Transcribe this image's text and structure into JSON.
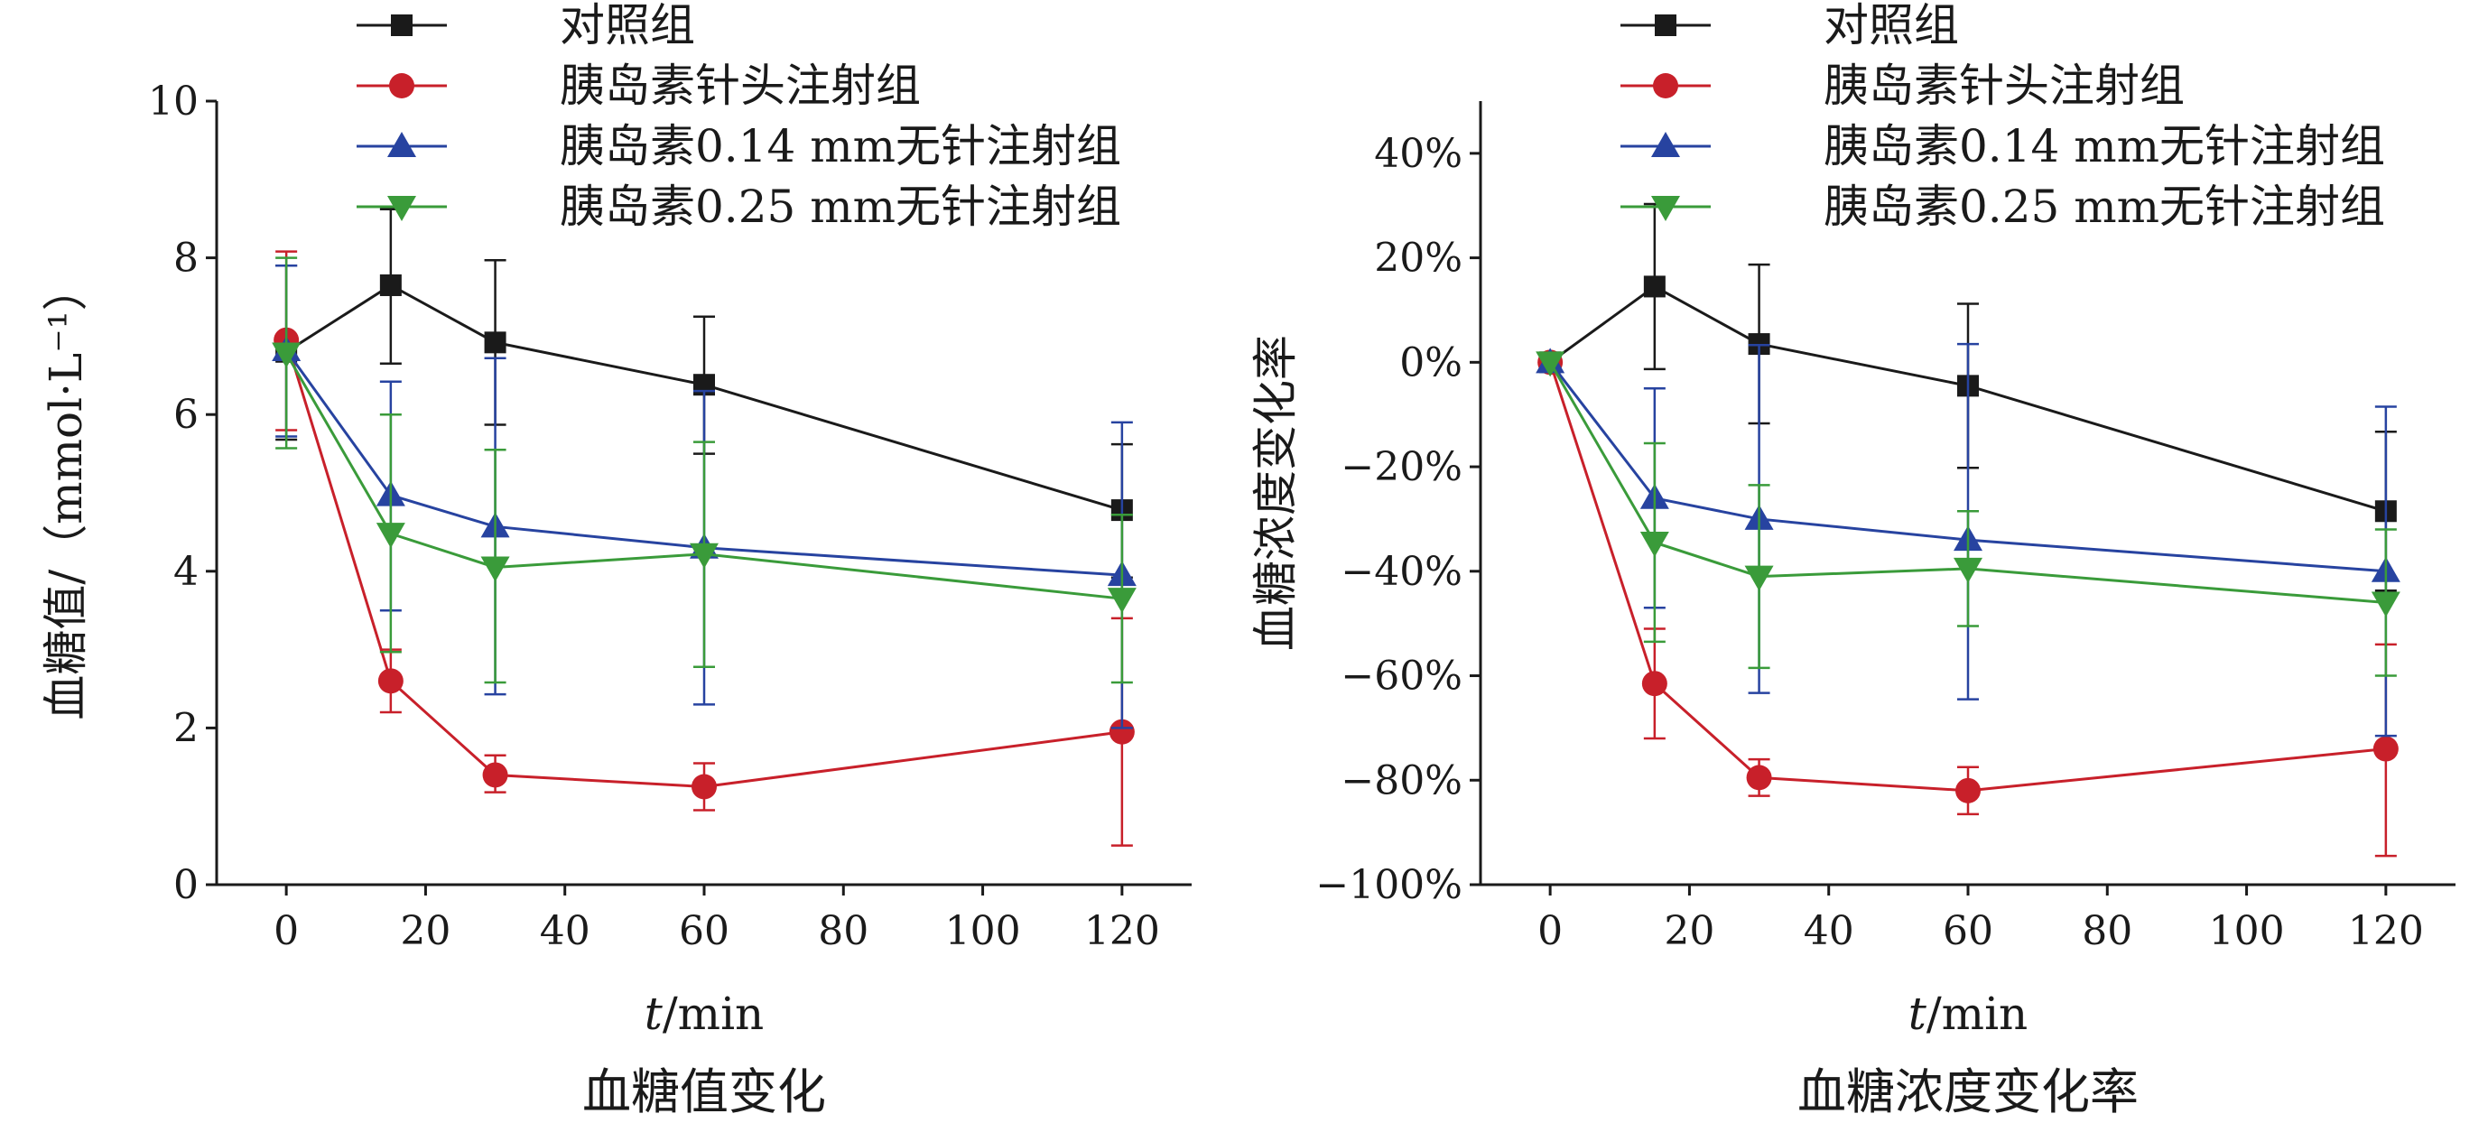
{
  "chart_data": [
    {
      "type": "line",
      "caption": "血糖值变化",
      "xlabel_italic": "t",
      "xlabel_unit": "/min",
      "ylabel": "血糖值/（mmol·L⁻¹）",
      "xlim": [
        -10,
        130
      ],
      "ylim": [
        0,
        10
      ],
      "xticks": [
        0,
        20,
        40,
        60,
        80,
        100,
        120
      ],
      "yticks": [
        0,
        2,
        4,
        6,
        8,
        10
      ],
      "x": [
        0,
        15,
        30,
        60,
        120
      ],
      "grid": false,
      "legend_position": "top",
      "series": [
        {
          "name": "对照组",
          "color": "#1a1a1a",
          "marker": "square",
          "values": [
            6.8,
            7.65,
            6.92,
            6.38,
            4.78
          ],
          "err_upper": [
            7.9,
            8.62,
            7.97,
            7.25,
            5.62
          ],
          "err_lower": [
            5.68,
            6.65,
            5.87,
            5.5,
            3.92
          ]
        },
        {
          "name": "胰岛素针头注射组",
          "color": "#c8202a",
          "marker": "circle",
          "values": [
            6.95,
            2.6,
            1.4,
            1.25,
            1.95
          ],
          "err_upper": [
            8.08,
            3.0,
            1.65,
            1.55,
            3.4
          ],
          "err_lower": [
            5.8,
            2.2,
            1.18,
            0.95,
            0.5
          ]
        },
        {
          "name": "胰岛素0.14 mm无针注射组",
          "color": "#2743a0",
          "marker": "triangle-up",
          "values": [
            6.82,
            4.97,
            4.57,
            4.3,
            3.95
          ],
          "err_upper": [
            7.9,
            6.42,
            6.72,
            6.3,
            5.9
          ],
          "err_lower": [
            5.72,
            3.5,
            2.43,
            2.3,
            2.0
          ]
        },
        {
          "name": "胰岛素0.25 mm无针注射组",
          "color": "#3a9b3a",
          "marker": "triangle-down",
          "values": [
            6.78,
            4.48,
            4.05,
            4.22,
            3.65
          ],
          "err_upper": [
            8.0,
            6.0,
            5.55,
            5.65,
            4.72
          ],
          "err_lower": [
            5.57,
            2.97,
            2.58,
            2.78,
            2.58
          ]
        }
      ]
    },
    {
      "type": "line",
      "caption": "血糖浓度变化率",
      "xlabel_italic": "t",
      "xlabel_unit": "/min",
      "ylabel": "血糖浓度变化率",
      "xlim": [
        -10,
        130
      ],
      "ylim": [
        -100,
        50
      ],
      "xticks": [
        0,
        20,
        40,
        60,
        80,
        100,
        120
      ],
      "yticks": [
        -100,
        -80,
        -60,
        -40,
        -20,
        0,
        20,
        40
      ],
      "ytick_suffix": "%",
      "x": [
        0,
        15,
        30,
        60,
        120
      ],
      "grid": false,
      "legend_position": "top",
      "series": [
        {
          "name": "对照组",
          "color": "#1a1a1a",
          "marker": "square",
          "values": [
            0,
            14.5,
            3.5,
            -4.5,
            -28.5
          ],
          "err_upper": [
            0,
            30.3,
            18.7,
            11.2,
            -13.3
          ],
          "err_lower": [
            0,
            -1.3,
            -11.7,
            -20.2,
            -43.7
          ]
        },
        {
          "name": "胰岛素针头注射组",
          "color": "#c8202a",
          "marker": "circle",
          "values": [
            0,
            -61.5,
            -79.5,
            -82,
            -74
          ],
          "err_upper": [
            0,
            -51,
            -76,
            -77.5,
            -54
          ],
          "err_lower": [
            0,
            -72,
            -83,
            -86.5,
            -94.5
          ]
        },
        {
          "name": "胰岛素0.14 mm无针注射组",
          "color": "#2743a0",
          "marker": "triangle-up",
          "values": [
            0,
            -26,
            -30,
            -34,
            -40
          ],
          "err_upper": [
            0,
            -5,
            3.3,
            3.5,
            -8.5
          ],
          "err_lower": [
            0,
            -47,
            -63.3,
            -64.5,
            -71.5
          ]
        },
        {
          "name": "胰岛素0.25 mm无针注射组",
          "color": "#3a9b3a",
          "marker": "triangle-down",
          "values": [
            0,
            -34.5,
            -41,
            -39.5,
            -46
          ],
          "err_upper": [
            0,
            -15.5,
            -23.5,
            -28.5,
            -32
          ],
          "err_lower": [
            0,
            -53.5,
            -58.5,
            -50.5,
            -60
          ]
        }
      ]
    }
  ]
}
